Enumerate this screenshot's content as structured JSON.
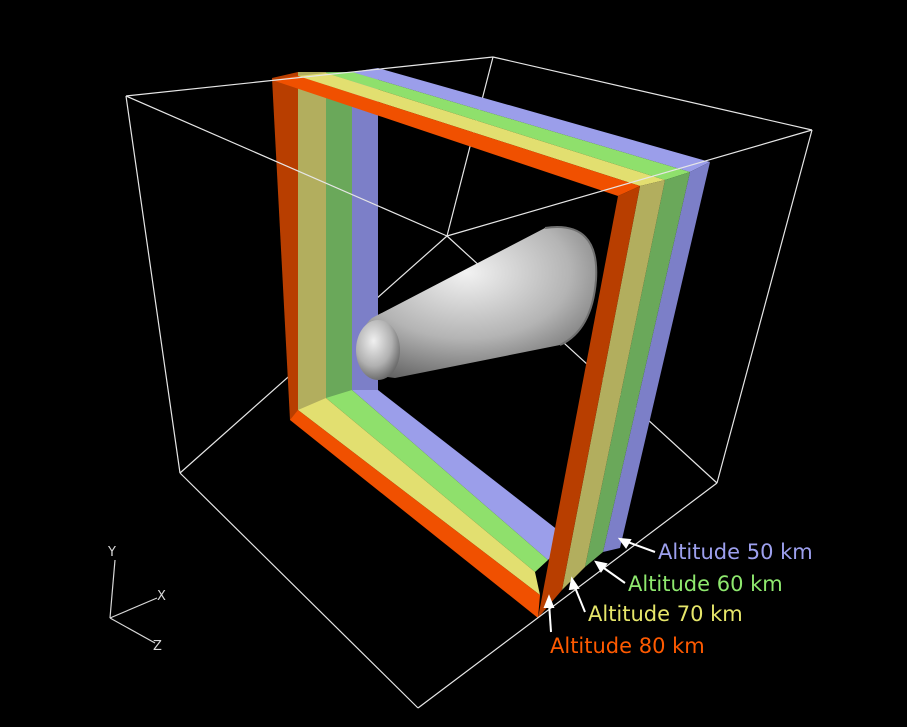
{
  "colors": {
    "background": "#000000",
    "box_edges": "#e6e6e6",
    "layer_80": "#ff5a00",
    "layer_70": "#e6e66a",
    "layer_60": "#8ee86e",
    "layer_50": "#9da0ee",
    "body": "#b8b8b8"
  },
  "labels": {
    "alt50": "Altitude 50 km",
    "alt60": "Altitude 60 km",
    "alt70": "Altitude 70 km",
    "alt80": "Altitude 80 km"
  },
  "axes": {
    "y": "Y",
    "x": "X",
    "z": "Z"
  }
}
